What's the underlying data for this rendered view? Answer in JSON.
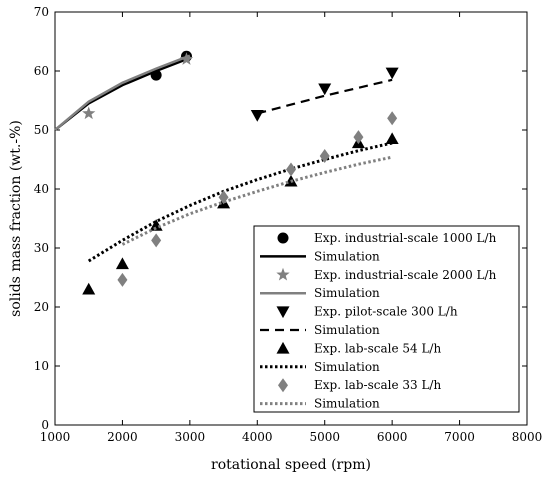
{
  "chart_data": {
    "type": "scatter",
    "xlabel": "rotational speed (rpm)",
    "ylabel": "solids mass fraction (wt.-%)",
    "xlim": [
      1000,
      8000
    ],
    "ylim": [
      0,
      70
    ],
    "xticks": [
      1000,
      2000,
      3000,
      4000,
      5000,
      6000,
      7000,
      8000
    ],
    "yticks": [
      0,
      10,
      20,
      30,
      40,
      50,
      60,
      70
    ],
    "grid": false,
    "legend_position": "bottom-right",
    "series": [
      {
        "name": "Exp. industrial-scale 1000 L/h",
        "kind": "points",
        "marker": "circle",
        "color": "#000000",
        "points": [
          [
            2500,
            59.3
          ],
          [
            2950,
            62.5
          ]
        ]
      },
      {
        "name": "Simulation",
        "kind": "line",
        "dash": "solid",
        "color": "#000000",
        "points": [
          [
            1000,
            50.0
          ],
          [
            1500,
            54.5
          ],
          [
            2000,
            57.6
          ],
          [
            2500,
            60.0
          ],
          [
            3000,
            62.2
          ]
        ]
      },
      {
        "name": "Exp. industrial-scale 2000 L/h",
        "kind": "points",
        "marker": "star",
        "color": "#808080",
        "points": [
          [
            1500,
            52.8
          ],
          [
            2950,
            62.0
          ]
        ]
      },
      {
        "name": "Simulation",
        "kind": "line",
        "dash": "solid",
        "color": "#808080",
        "points": [
          [
            1000,
            50.0
          ],
          [
            1500,
            54.8
          ],
          [
            2000,
            58.0
          ],
          [
            2500,
            60.4
          ],
          [
            3000,
            62.6
          ]
        ]
      },
      {
        "name": "Exp. pilot-scale 300 L/h",
        "kind": "points",
        "marker": "triangle-down",
        "color": "#000000",
        "points": [
          [
            4000,
            52.5
          ],
          [
            5000,
            57.0
          ],
          [
            6000,
            59.7
          ]
        ]
      },
      {
        "name": "Simulation",
        "kind": "line",
        "dash": "dashed",
        "color": "#000000",
        "points": [
          [
            4000,
            52.8
          ],
          [
            5000,
            55.8
          ],
          [
            6000,
            58.5
          ]
        ]
      },
      {
        "name": "Exp. lab-scale 54 L/h",
        "kind": "points",
        "marker": "triangle-up",
        "color": "#000000",
        "points": [
          [
            1500,
            23.0
          ],
          [
            2000,
            27.3
          ],
          [
            2500,
            33.8
          ],
          [
            3500,
            37.6
          ],
          [
            4500,
            41.3
          ],
          [
            5500,
            47.8
          ],
          [
            6000,
            48.5
          ]
        ]
      },
      {
        "name": "Simulation",
        "kind": "line",
        "dash": "dotted",
        "color": "#000000",
        "points": [
          [
            1500,
            27.8
          ],
          [
            2000,
            31.3
          ],
          [
            2500,
            34.5
          ],
          [
            3000,
            37.2
          ],
          [
            3500,
            39.6
          ],
          [
            4000,
            41.6
          ],
          [
            4500,
            43.4
          ],
          [
            5000,
            45.0
          ],
          [
            5500,
            46.5
          ],
          [
            6000,
            47.8
          ]
        ]
      },
      {
        "name": "Exp. lab-scale 33 L/h",
        "kind": "points",
        "marker": "diamond",
        "color": "#808080",
        "points": [
          [
            2000,
            24.6
          ],
          [
            2500,
            31.3
          ],
          [
            3500,
            38.6
          ],
          [
            4500,
            43.3
          ],
          [
            5000,
            45.6
          ],
          [
            5500,
            48.8
          ],
          [
            6000,
            52.0
          ]
        ]
      },
      {
        "name": "Simulation",
        "kind": "line",
        "dash": "dotted",
        "color": "#808080",
        "points": [
          [
            2000,
            30.6
          ],
          [
            2500,
            33.4
          ],
          [
            3000,
            35.8
          ],
          [
            3500,
            37.8
          ],
          [
            4000,
            39.6
          ],
          [
            4500,
            41.3
          ],
          [
            5000,
            42.8
          ],
          [
            5500,
            44.2
          ],
          [
            6000,
            45.4
          ]
        ]
      }
    ]
  }
}
